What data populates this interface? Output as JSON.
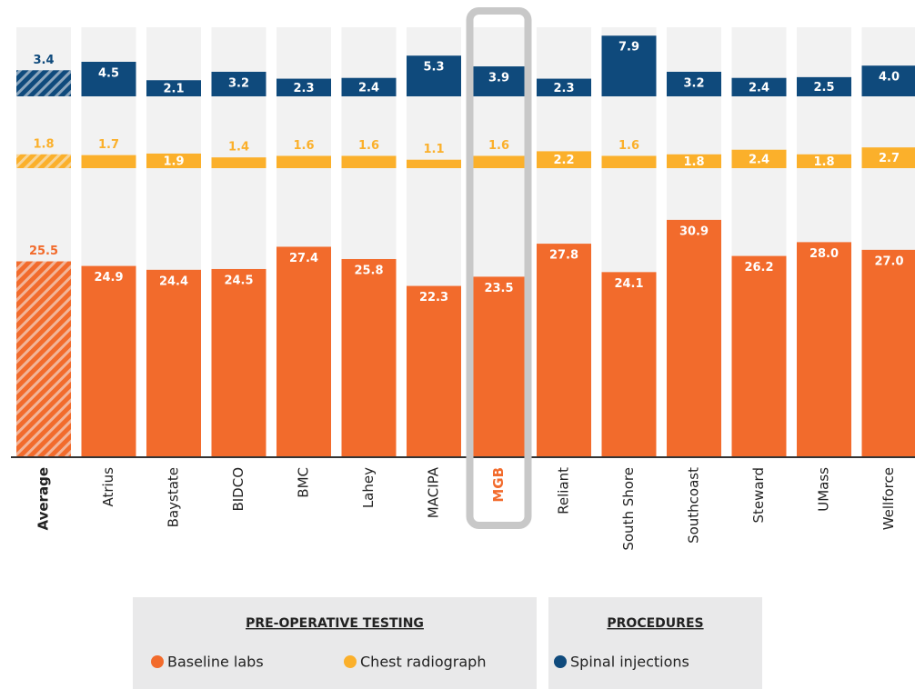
{
  "chart_data": {
    "type": "bar",
    "categories": [
      "Average",
      "Atrius",
      "Baystate",
      "BIDCO",
      "BMC",
      "Lahey",
      "MACIPA",
      "MGB",
      "Reliant",
      "South Shore",
      "Southcoast",
      "Steward",
      "UMass",
      "Wellforce"
    ],
    "average": "Average",
    "highlight": "MGB",
    "series": [
      {
        "name": "Baseline labs",
        "color": "#f26b2c",
        "values": [
          25.5,
          24.9,
          24.4,
          24.5,
          27.4,
          25.8,
          22.3,
          23.5,
          27.8,
          24.1,
          30.9,
          26.2,
          28.0,
          27.0
        ],
        "value_labels": [
          "25.5",
          "24.9",
          "24.4",
          "24.5",
          "27.4",
          "25.8",
          "22.3",
          "23.5",
          "27.8",
          "24.1",
          "30.9",
          "26.2",
          "28.0",
          "27.0"
        ]
      },
      {
        "name": "Chest radiograph",
        "color": "#fbb02b",
        "values": [
          1.8,
          1.7,
          1.9,
          1.4,
          1.6,
          1.6,
          1.1,
          1.6,
          2.2,
          1.6,
          1.8,
          2.4,
          1.8,
          2.7
        ]
      },
      {
        "name": "Spinal injections",
        "color": "#0f4a7c",
        "values": [
          3.4,
          4.5,
          2.1,
          3.2,
          2.3,
          2.4,
          5.3,
          3.9,
          2.3,
          7.9,
          3.2,
          2.4,
          2.5,
          4.0
        ],
        "value_labels": [
          "3.4",
          "4.5",
          "2.1",
          "3.2",
          "2.3",
          "2.4",
          "5.3",
          "3.9",
          "2.3",
          "7.9",
          "3.2",
          "2.4",
          "2.5",
          "4.0"
        ]
      }
    ],
    "legend_groups": [
      "PRE-OPERATIVE TESTING",
      "PROCEDURES"
    ]
  }
}
